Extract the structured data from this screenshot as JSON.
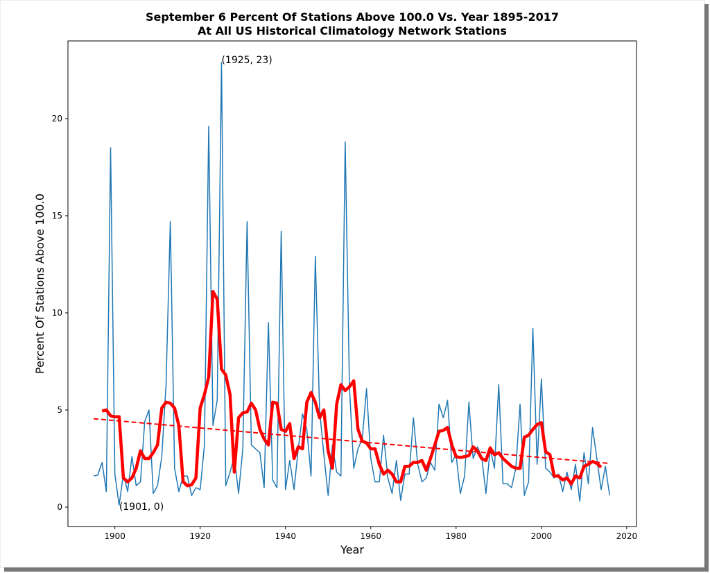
{
  "chart_data": {
    "type": "line",
    "title": [
      "September 6 Percent Of Stations Above 100.0 Vs. Year 1895-2017",
      "At All US Historical Climatology Network Stations"
    ],
    "xlabel": "Year",
    "ylabel": "Percent Of Stations Above 100.0",
    "xlim": [
      1889,
      2022.3
    ],
    "ylim": [
      -1,
      24
    ],
    "xticks": [
      1900,
      1920,
      1940,
      1960,
      1980,
      2000,
      2020
    ],
    "yticks": [
      0,
      5,
      10,
      15,
      20
    ],
    "x": [
      1895,
      1896,
      1897,
      1898,
      1899,
      1900,
      1901,
      1902,
      1903,
      1904,
      1905,
      1906,
      1907,
      1908,
      1909,
      1910,
      1911,
      1912,
      1913,
      1914,
      1915,
      1916,
      1917,
      1918,
      1919,
      1920,
      1921,
      1922,
      1923,
      1924,
      1925,
      1926,
      1927,
      1928,
      1929,
      1930,
      1931,
      1932,
      1933,
      1934,
      1935,
      1936,
      1937,
      1938,
      1939,
      1940,
      1941,
      1942,
      1943,
      1944,
      1945,
      1946,
      1947,
      1948,
      1949,
      1950,
      1951,
      1952,
      1953,
      1954,
      1955,
      1956,
      1957,
      1958,
      1959,
      1960,
      1961,
      1962,
      1963,
      1964,
      1965,
      1966,
      1967,
      1968,
      1969,
      1970,
      1971,
      1972,
      1973,
      1974,
      1975,
      1976,
      1977,
      1978,
      1979,
      1980,
      1981,
      1982,
      1983,
      1984,
      1985,
      1986,
      1987,
      1988,
      1989,
      1990,
      1991,
      1992,
      1993,
      1994,
      1995,
      1996,
      1997,
      1998,
      1999,
      2000,
      2001,
      2002,
      2003,
      2004,
      2005,
      2006,
      2007,
      2008,
      2009,
      2010,
      2011,
      2012,
      2013,
      2014,
      2015,
      2016
    ],
    "series": [
      {
        "color": "#1f77b4",
        "width": 1.5,
        "dash": false,
        "values": [
          1.6,
          1.65,
          2.3,
          0.8,
          18.5,
          1.7,
          0.1,
          1.7,
          0.8,
          2.6,
          1.1,
          1.3,
          4.4,
          5.0,
          0.7,
          1.1,
          2.6,
          6.3,
          14.7,
          2.0,
          0.8,
          1.6,
          1.6,
          0.6,
          1.0,
          0.9,
          3.2,
          19.6,
          4.2,
          5.5,
          22.9,
          1.1,
          1.8,
          2.6,
          0.7,
          3.0,
          14.7,
          3.2,
          3.0,
          2.8,
          1.0,
          9.5,
          1.4,
          1.0,
          14.2,
          0.9,
          2.4,
          0.9,
          3.0,
          4.8,
          4.0,
          1.6,
          12.9,
          5.0,
          2.7,
          0.6,
          3.2,
          1.8,
          1.6,
          18.8,
          6.2,
          2.0,
          3.0,
          3.5,
          6.1,
          2.5,
          1.3,
          1.3,
          3.7,
          1.5,
          0.7,
          2.4,
          0.35,
          1.7,
          1.7,
          4.6,
          2.2,
          1.3,
          1.5,
          2.3,
          1.9,
          5.3,
          4.6,
          5.5,
          2.3,
          2.7,
          0.7,
          1.6,
          5.4,
          2.5,
          3.1,
          2.6,
          0.7,
          3.0,
          2.0,
          6.3,
          1.2,
          1.2,
          1.0,
          2.0,
          5.3,
          0.6,
          1.3,
          9.2,
          2.2,
          6.6,
          2.0,
          1.8,
          1.5,
          1.7,
          0.8,
          1.8,
          0.9,
          2.2,
          0.3,
          2.8,
          1.2,
          4.1,
          2.5,
          0.9,
          2.1,
          0.6
        ]
      },
      {
        "color": "#ff0000",
        "width": 4.5,
        "dash": false,
        "values": [
          null,
          null,
          4.95,
          5.0,
          4.7,
          4.65,
          4.65,
          1.5,
          1.3,
          1.5,
          2.0,
          2.9,
          2.5,
          2.5,
          2.8,
          3.2,
          5.1,
          5.4,
          5.35,
          5.1,
          4.2,
          1.3,
          1.1,
          1.15,
          1.5,
          5.1,
          5.8,
          6.7,
          11.1,
          10.7,
          7.1,
          6.8,
          5.8,
          1.8,
          4.6,
          4.85,
          4.9,
          5.35,
          5.0,
          4.0,
          3.5,
          3.2,
          5.4,
          5.35,
          4.0,
          3.9,
          4.3,
          2.5,
          3.1,
          3.0,
          5.4,
          5.9,
          5.4,
          4.6,
          5.0,
          2.9,
          2.0,
          5.3,
          6.3,
          6.0,
          6.2,
          6.5,
          4.0,
          3.4,
          3.3,
          3.0,
          3.0,
          2.2,
          1.7,
          1.9,
          1.7,
          1.3,
          1.3,
          2.1,
          2.1,
          2.3,
          2.3,
          2.4,
          1.9,
          2.5,
          3.2,
          3.9,
          3.95,
          4.1,
          3.2,
          2.6,
          2.55,
          2.6,
          2.65,
          3.1,
          2.9,
          2.5,
          2.4,
          3.05,
          2.7,
          2.8,
          2.5,
          2.3,
          2.1,
          2.0,
          2.0,
          3.6,
          3.7,
          4.0,
          4.25,
          4.35,
          2.85,
          2.7,
          1.6,
          1.6,
          1.4,
          1.5,
          1.2,
          1.6,
          1.5,
          2.1,
          2.2,
          2.35,
          2.25,
          2.05,
          null,
          null
        ]
      },
      {
        "color": "#ff0000",
        "width": 2,
        "dash": true,
        "x": [
          1895,
          2016
        ],
        "values": [
          4.55,
          2.25
        ]
      }
    ],
    "annotations": [
      {
        "text": "(1925, 23)",
        "x": 1925,
        "y": 23
      },
      {
        "text": "(1901, 0)",
        "x": 1901,
        "y": 0
      }
    ]
  }
}
